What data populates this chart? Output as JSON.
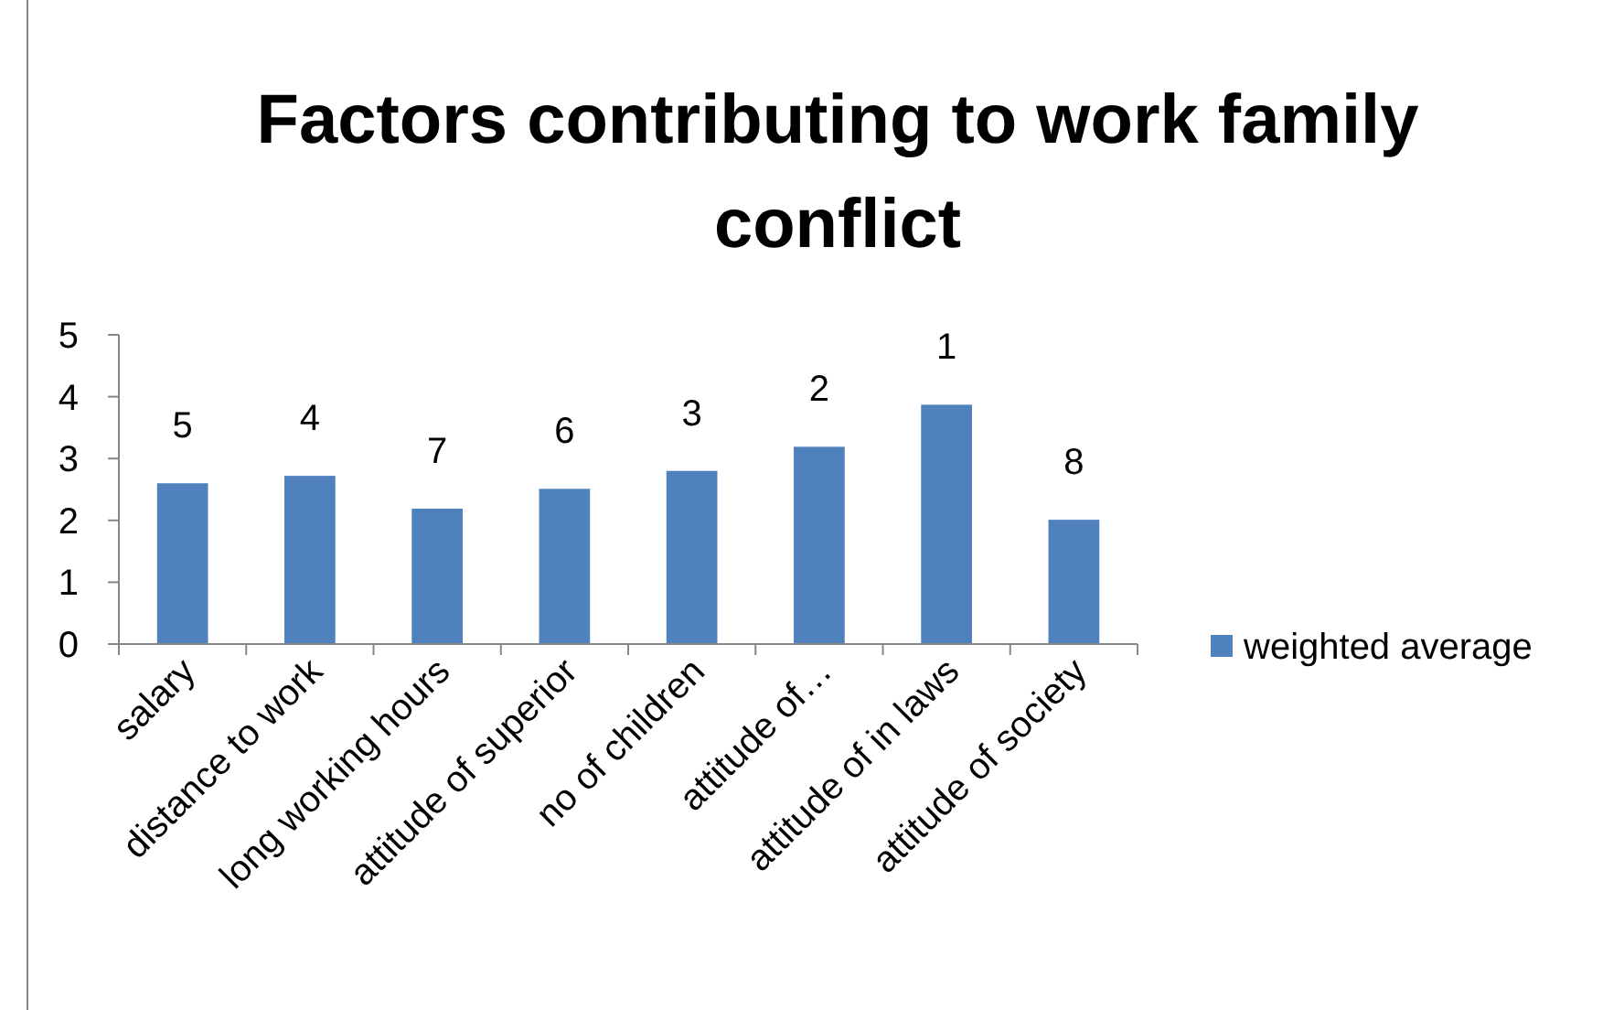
{
  "chart_data": {
    "type": "bar",
    "title": "Factors contributing to work family conflict",
    "categories": [
      "salary",
      "distance to work",
      "long working hours",
      "attitude of superior",
      "no of children",
      "attitude of…",
      "attitude of in laws",
      "attitude of society"
    ],
    "series": [
      {
        "name": "weighted average",
        "color": "#4f81bd",
        "values": [
          2.6,
          2.72,
          2.19,
          2.51,
          2.8,
          3.19,
          3.87,
          2.01
        ]
      }
    ],
    "annotations": [
      {
        "text": "5",
        "x": "salary",
        "y": 2.6
      },
      {
        "text": "4",
        "x": "distance to work",
        "y": 2.72
      },
      {
        "text": "7",
        "x": "long working hours",
        "y": 2.19
      },
      {
        "text": "6",
        "x": "attitude of superior",
        "y": 2.51
      },
      {
        "text": "3",
        "x": "no of children",
        "y": 2.8
      },
      {
        "text": "2",
        "x": "attitude of…",
        "y": 3.19
      },
      {
        "text": "1",
        "x": "attitude of in laws",
        "y": 3.87
      },
      {
        "text": "8",
        "x": "attitude of society",
        "y": 2.01
      }
    ],
    "ylim": [
      0,
      5
    ],
    "yticks": [
      0,
      1,
      2,
      3,
      4,
      5
    ],
    "grid": false,
    "legend": "right"
  }
}
